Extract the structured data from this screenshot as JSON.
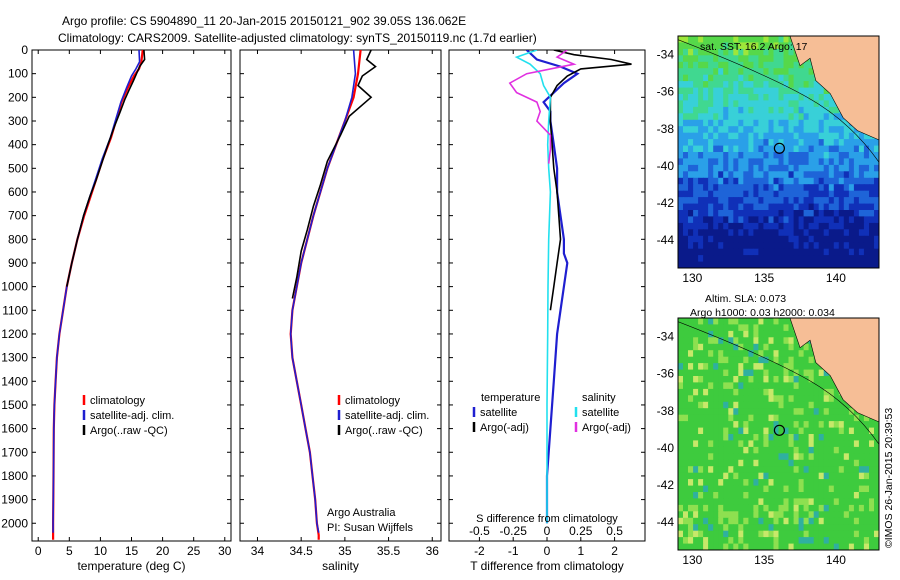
{
  "header": {
    "line1": "Argo profile: CS 5904890_11 20-Jan-2015 20150121_902 39.05S 136.062E",
    "line2": "Climatology: CARS2009. Satellite-adjusted climatology: synTS_20150119.nc (1.7d earlier)"
  },
  "colors": {
    "climatology": "#ff0000",
    "satellite": "#1f1fd0",
    "argo": "#000000",
    "sal_satellite": "#22e0ee",
    "sal_argo": "#e030e0",
    "land": "#f6be96"
  },
  "chart_data": [
    {
      "type": "line",
      "name": "temperature-profile",
      "xlabel": "temperature (deg C)",
      "xlim": [
        -1,
        31
      ],
      "ylim": [
        0,
        2075
      ],
      "y_inverted": true,
      "xticks": [
        0,
        5,
        10,
        15,
        20,
        25,
        30
      ],
      "yticks": [
        0,
        100,
        200,
        300,
        400,
        500,
        600,
        700,
        800,
        900,
        1000,
        1100,
        1200,
        1300,
        1400,
        1500,
        1600,
        1700,
        1800,
        1900,
        2000
      ],
      "legend": {
        "position": "lower-center",
        "items": [
          "climatology",
          "satellite-adj. clim.",
          "Argo(..raw -QC)"
        ]
      },
      "series": [
        {
          "name": "climatology",
          "color": "#ff0000",
          "x": [
            16.8,
            16.6,
            16.2,
            15.4,
            14.4,
            13.4,
            12.6,
            11.7,
            10.4,
            9.4,
            8.4,
            7.4,
            6.3,
            5.4,
            4.6,
            4.0,
            3.4,
            3.0,
            2.8,
            2.6,
            2.5,
            2.45,
            2.4,
            2.4
          ],
          "y": [
            0,
            50,
            80,
            110,
            160,
            220,
            290,
            370,
            460,
            540,
            620,
            700,
            800,
            900,
            1000,
            1100,
            1200,
            1300,
            1400,
            1500,
            1600,
            1800,
            2000,
            2070
          ]
        },
        {
          "name": "satellite-adj. clim.",
          "color": "#1f1fd0",
          "x": [
            16.2,
            16.3,
            15.7,
            15.0,
            14.2,
            13.3,
            12.5,
            11.6,
            10.3,
            9.3,
            8.3,
            7.3,
            6.3,
            5.4,
            4.6,
            4.0,
            3.4,
            3.0,
            2.8,
            2.6,
            2.5,
            2.45,
            2.4,
            2.4
          ],
          "y": [
            0,
            50,
            80,
            110,
            160,
            220,
            290,
            370,
            460,
            540,
            620,
            700,
            800,
            900,
            1000,
            1100,
            1200,
            1300,
            1400,
            1500,
            1600,
            1800,
            2000,
            2040
          ]
        },
        {
          "name": "Argo(..raw -QC)",
          "color": "#000000",
          "x": [
            17.0,
            17.1,
            16.3,
            15.8,
            15.3,
            14.6,
            13.9,
            13.2,
            12.3,
            11.2,
            10.2,
            9.3,
            8.3,
            7.3,
            6.3,
            5.4,
            4.6
          ],
          "y": [
            0,
            40,
            70,
            100,
            130,
            170,
            210,
            260,
            320,
            400,
            480,
            550,
            620,
            700,
            800,
            900,
            1000
          ]
        }
      ]
    },
    {
      "type": "line",
      "name": "salinity-profile",
      "xlabel": "salinity",
      "xlim": [
        33.8,
        36.1
      ],
      "ylim": [
        0,
        2075
      ],
      "y_inverted": true,
      "xticks": [
        34,
        34.5,
        35,
        35.5,
        36
      ],
      "xticklabels": [
        "34",
        "34.5",
        "35",
        "35.5",
        "36"
      ],
      "legend": {
        "position": "lower-center",
        "items": [
          "climatology",
          "satellite-adj. clim.",
          "Argo(..raw -QC)"
        ]
      },
      "annotation": [
        "Argo Australia",
        "PI: Susan Wijffels"
      ],
      "series": [
        {
          "name": "climatology",
          "color": "#ff0000",
          "x": [
            35.18,
            35.15,
            35.1,
            35.0,
            34.9,
            34.8,
            34.72,
            34.64,
            34.57,
            34.5,
            34.45,
            34.4,
            34.38,
            34.4,
            34.45,
            34.5,
            34.55,
            34.6,
            34.63,
            34.66,
            34.68,
            34.7,
            34.7
          ],
          "y": [
            0,
            100,
            200,
            300,
            400,
            500,
            600,
            700,
            800,
            900,
            1000,
            1100,
            1200,
            1300,
            1400,
            1500,
            1600,
            1700,
            1800,
            1900,
            2000,
            2050,
            2070
          ]
        },
        {
          "name": "satellite-adj. clim.",
          "color": "#1f1fd0",
          "x": [
            35.1,
            35.12,
            35.08,
            35.0,
            34.9,
            34.8,
            34.72,
            34.64,
            34.57,
            34.5,
            34.45,
            34.4,
            34.38,
            34.4,
            34.45,
            34.5,
            34.55,
            34.6,
            34.63,
            34.66,
            34.68,
            34.7
          ],
          "y": [
            0,
            100,
            200,
            300,
            400,
            500,
            600,
            700,
            800,
            900,
            1000,
            1100,
            1200,
            1300,
            1400,
            1500,
            1600,
            1700,
            1800,
            1900,
            2000,
            2040
          ]
        },
        {
          "name": "Argo(..raw -QC)",
          "color": "#000000",
          "x": [
            35.3,
            35.25,
            35.35,
            35.2,
            35.15,
            35.3,
            35.05,
            34.95,
            34.8,
            34.72,
            34.64,
            34.57,
            34.5,
            34.45,
            34.4
          ],
          "y": [
            0,
            40,
            70,
            110,
            150,
            200,
            280,
            360,
            470,
            570,
            660,
            760,
            850,
            960,
            1050
          ]
        }
      ]
    },
    {
      "type": "line",
      "name": "difference-profile",
      "xlabel": "T difference from climatology",
      "xlabel_top": "S difference from climatology",
      "xlim": [
        -2.9,
        2.9
      ],
      "ylim": [
        0,
        2075
      ],
      "y_inverted": true,
      "xticks": [
        -2,
        -1,
        0,
        1,
        2
      ],
      "xticks_top": [
        -0.5,
        -0.25,
        0,
        0.25,
        0.5
      ],
      "xticklabels_top": [
        "-0.5",
        "-0.25",
        "0",
        "0.25",
        "0.5"
      ],
      "legend": {
        "position": "lower-center",
        "headers": [
          "temperature",
          "salinity"
        ],
        "items": [
          "satellite",
          "Argo(-adj)",
          "satellite",
          "Argo(-adj)"
        ]
      },
      "series": [
        {
          "name": "temperature satellite",
          "color": "#1f1fd0",
          "x": [
            -0.6,
            -0.3,
            0.4,
            0.9,
            0.5,
            0.2,
            -0.1,
            0.1,
            0.1,
            0.2,
            0.3,
            0.3,
            0.4,
            0.5,
            0.5,
            0.6,
            0.5,
            0.4,
            0.3,
            0.2,
            0.1,
            0,
            0
          ],
          "y": [
            0,
            40,
            70,
            100,
            140,
            180,
            220,
            260,
            300,
            400,
            500,
            600,
            700,
            800,
            860,
            900,
            1000,
            1100,
            1200,
            1400,
            1600,
            1800,
            2000
          ]
        },
        {
          "name": "temperature Argo(-adj)",
          "color": "#000000",
          "x": [
            0.2,
            0.8,
            1.9,
            2.5,
            1.0,
            0.6,
            0.3,
            0.1,
            0.1,
            0.15,
            0.2,
            0.3,
            0.35,
            0.4,
            0.3,
            0.2,
            0.1
          ],
          "y": [
            0,
            20,
            40,
            60,
            80,
            110,
            150,
            200,
            300,
            400,
            500,
            600,
            700,
            800,
            900,
            1000,
            1100
          ]
        },
        {
          "name": "salinity satellite",
          "color": "#22e0ee",
          "x": [
            -0.3,
            -0.9,
            -0.5,
            -0.2,
            -0.1,
            0.1,
            0.05,
            0.02,
            0.05,
            0.1,
            0.05,
            0.03,
            0.02,
            0,
            0
          ],
          "y": [
            0,
            30,
            60,
            100,
            150,
            200,
            300,
            400,
            500,
            600,
            800,
            1000,
            1200,
            1500,
            2000
          ]
        },
        {
          "name": "salinity Argo(-adj)",
          "color": "#e030e0",
          "x": [
            0.6,
            0.3,
            0.8,
            -0.6,
            -1.1,
            -0.9,
            -0.3,
            -0.2,
            -0.3,
            0.1,
            0.1,
            0.05
          ],
          "y": [
            0,
            30,
            60,
            100,
            140,
            180,
            220,
            260,
            300,
            360,
            420,
            480
          ]
        }
      ]
    },
    {
      "type": "heatmap",
      "name": "sst-map",
      "title": "sat. SST: 16.2 Argo: 17",
      "xlim": [
        129,
        143
      ],
      "ylim": [
        -45.5,
        -33
      ],
      "xticks": [
        130,
        135,
        140
      ],
      "yticks": [
        -34,
        -36,
        -38,
        -40,
        -42,
        -44
      ],
      "marker": {
        "lon": 136.062,
        "lat": -39.05
      }
    },
    {
      "type": "heatmap",
      "name": "sla-map",
      "title": "Altim. SLA: 0.073",
      "subtitle": "Argo h1000: 0.03 h2000: 0.034",
      "side_label": "©IMOS 26-Jan-2015 20:39:53",
      "xlim": [
        129,
        143
      ],
      "ylim": [
        -45.5,
        -33
      ],
      "xticks": [
        130,
        135,
        140
      ],
      "yticks": [
        -34,
        -36,
        -38,
        -40,
        -42,
        -44
      ],
      "marker": {
        "lon": 136.062,
        "lat": -39.05
      }
    }
  ]
}
